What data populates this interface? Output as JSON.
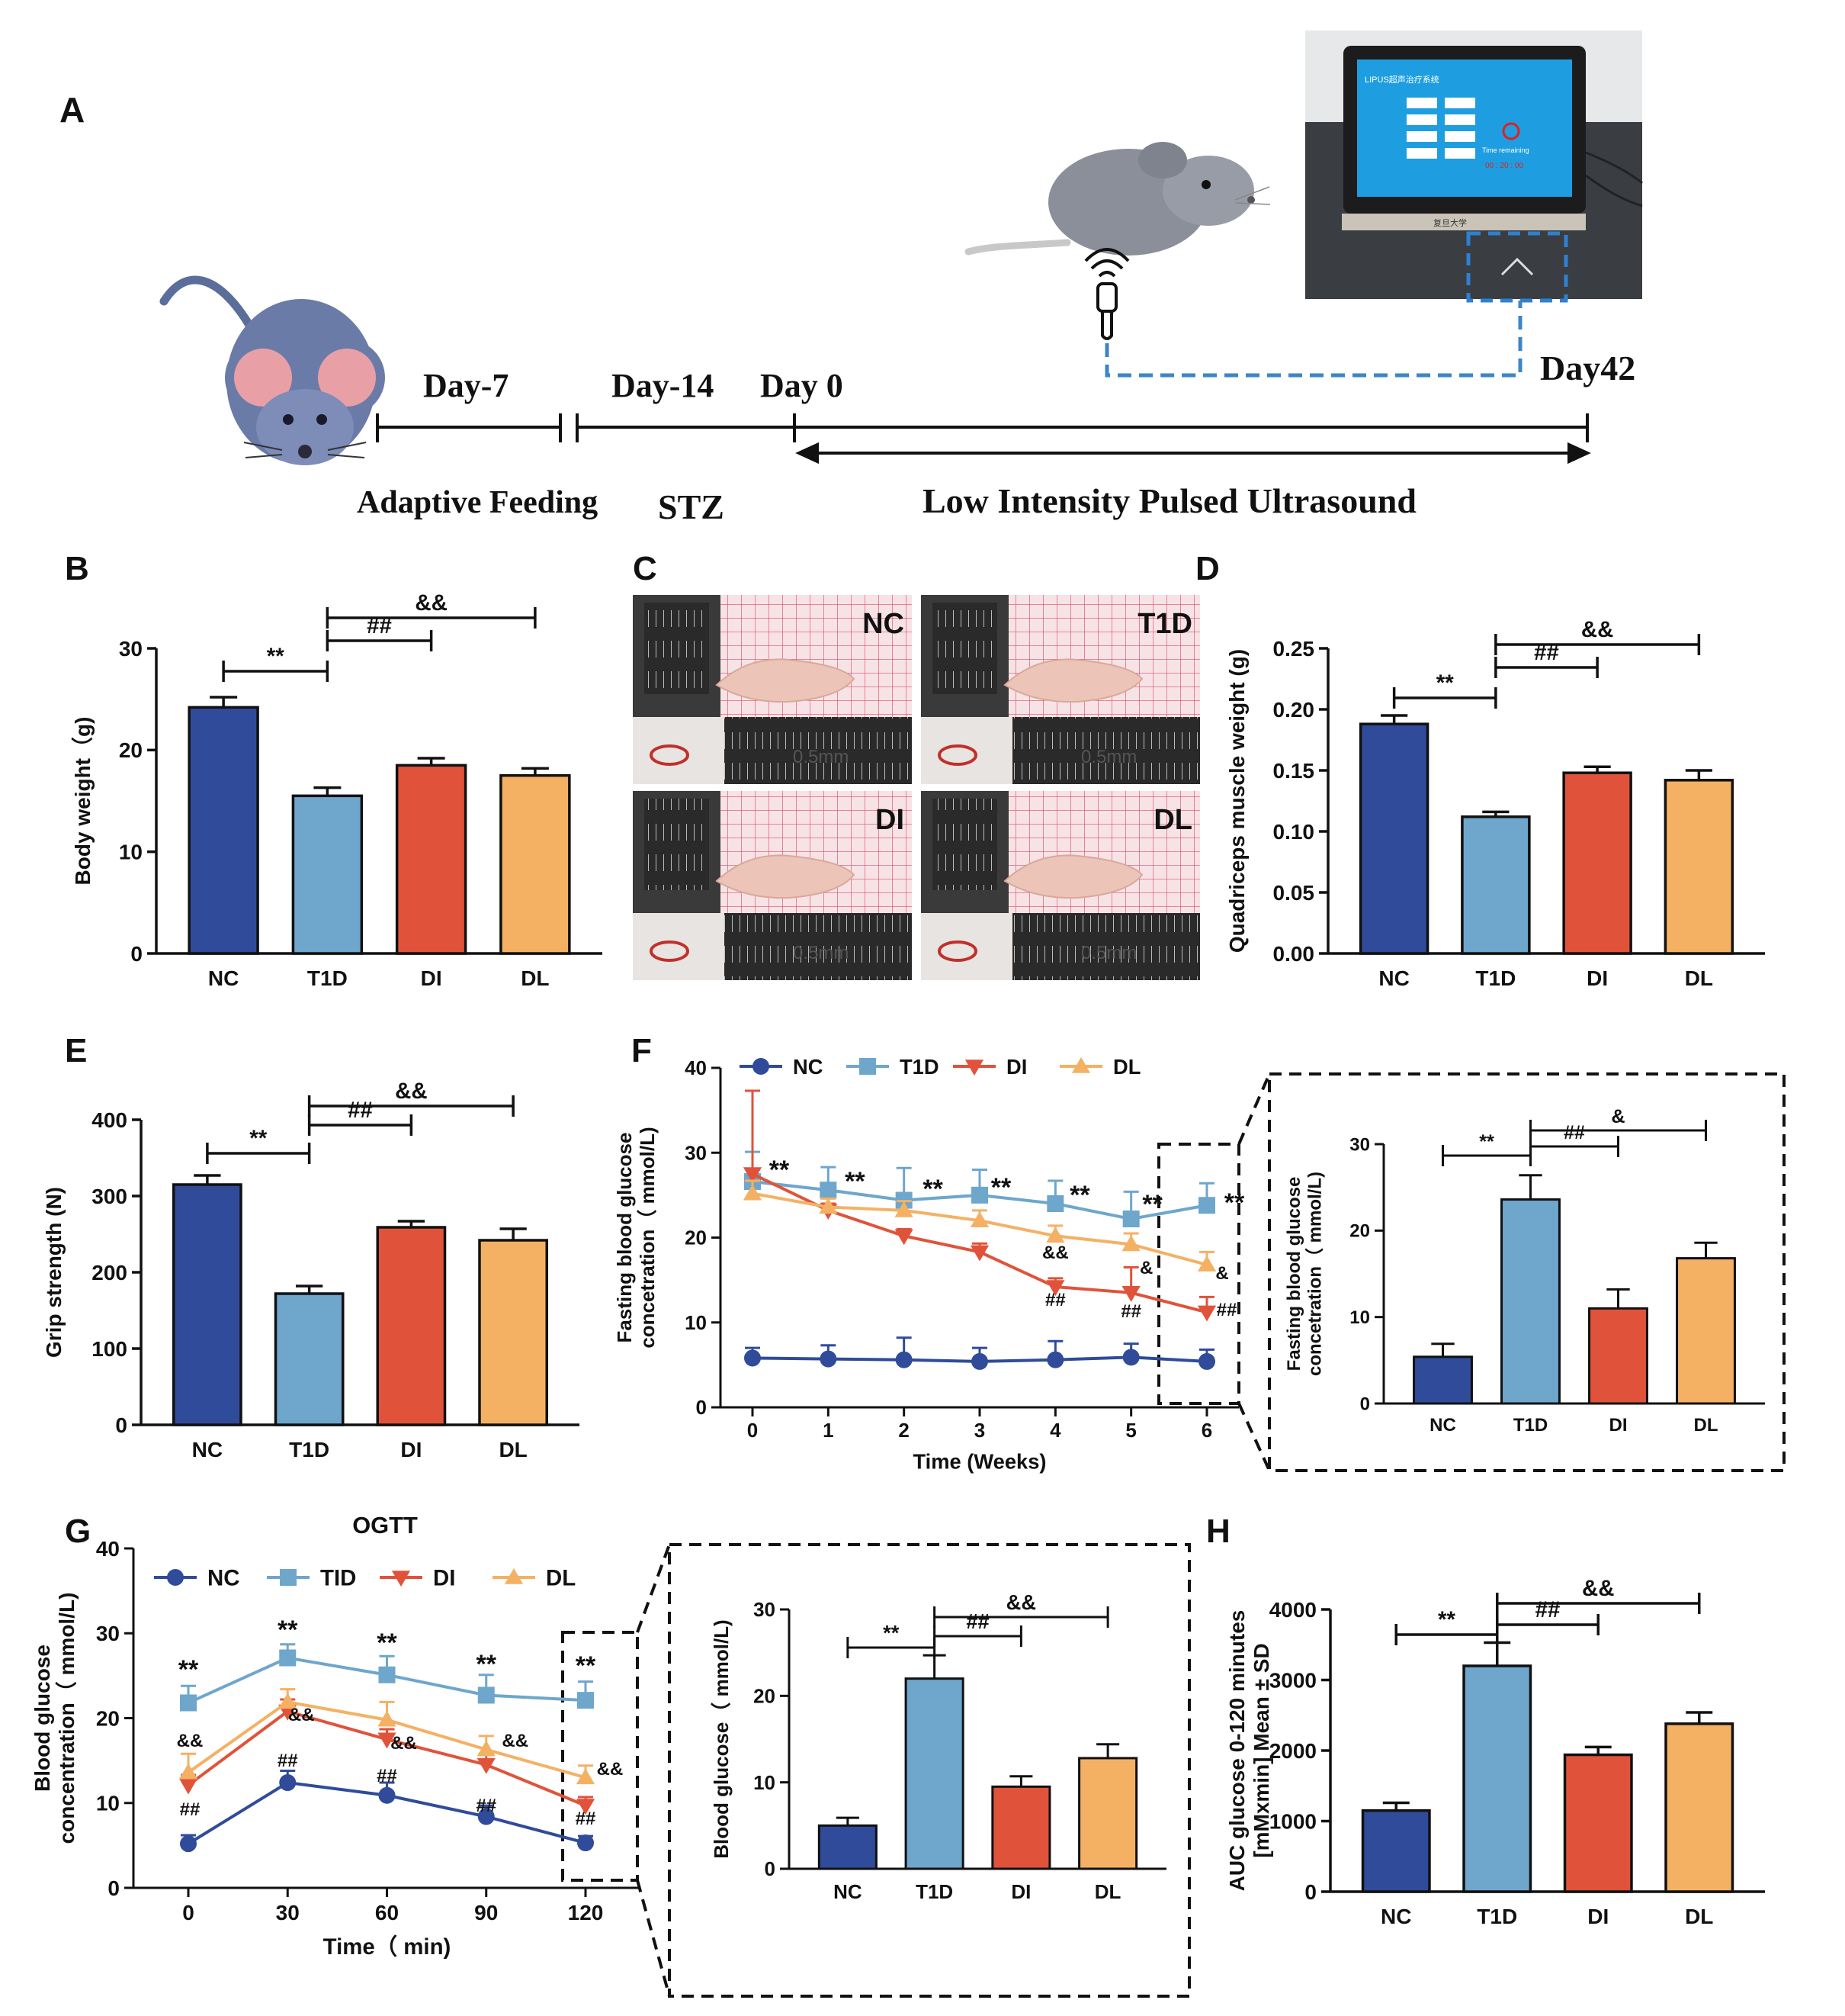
{
  "colors": {
    "NC": "#2f4b9a",
    "T1D": "#6ea6cc",
    "DI": "#e0533a",
    "DL": "#f4b164",
    "photo_bg": "#f6e0e3",
    "timeline_dash": "#3a86c8"
  },
  "panel_labels": {
    "A": "A",
    "B": "B",
    "C": "C",
    "D": "D",
    "E": "E",
    "F": "F",
    "G": "G",
    "H": "H"
  },
  "timeline": {
    "day_minus7": "Day-7",
    "day_minus14": "Day-14",
    "day0": "Day 0",
    "day42": "Day42",
    "phase1": "Adaptive Feeding",
    "phase2": "STZ",
    "phase3": "Low Intensity Pulsed Ultrasound",
    "device_title": "LIPUS超声治疗系统",
    "device_subtitle": "复旦大学",
    "device_time_label": "Time remaining",
    "device_time": "00 : 20 : 00"
  },
  "photo_labels": [
    "NC",
    "T1D",
    "DI",
    "DL"
  ],
  "photo_scale": "0.5mm",
  "chart_data": [
    {
      "id": "B",
      "type": "bar",
      "title": "",
      "categories": [
        "NC",
        "T1D",
        "DI",
        "DL"
      ],
      "values": [
        24.2,
        15.5,
        18.5,
        17.5
      ],
      "errors": [
        1.0,
        0.8,
        0.7,
        0.7
      ],
      "ylabel": "Body weight（g)",
      "ylim": [
        0,
        30
      ],
      "yticks": [
        "0",
        "10",
        "20",
        "30"
      ],
      "annotations": [
        {
          "text": "**",
          "from": "NC",
          "to": "T1D"
        },
        {
          "text": "##",
          "from": "T1D",
          "to": "DI"
        },
        {
          "text": "&&",
          "from": "T1D",
          "to": "DL"
        }
      ]
    },
    {
      "id": "D",
      "type": "bar",
      "title": "",
      "categories": [
        "NC",
        "T1D",
        "DI",
        "DL"
      ],
      "values": [
        0.188,
        0.112,
        0.148,
        0.142
      ],
      "errors": [
        0.007,
        0.004,
        0.005,
        0.008
      ],
      "ylabel": "Quadriceps muscle weight (g)",
      "ylim": [
        0,
        0.25
      ],
      "yticks": [
        "0.00",
        "0.05",
        "0.10",
        "0.15",
        "0.20",
        "0.25"
      ],
      "annotations": [
        {
          "text": "**",
          "from": "NC",
          "to": "T1D"
        },
        {
          "text": "##",
          "from": "T1D",
          "to": "DI"
        },
        {
          "text": "&&",
          "from": "T1D",
          "to": "DL"
        }
      ]
    },
    {
      "id": "E",
      "type": "bar",
      "title": "",
      "categories": [
        "NC",
        "T1D",
        "DI",
        "DL"
      ],
      "values": [
        315,
        172,
        259,
        242
      ],
      "errors": [
        12,
        10,
        8,
        15
      ],
      "ylabel": "Grip strength (N)",
      "ylim": [
        0,
        400
      ],
      "yticks": [
        "0",
        "100",
        "200",
        "300",
        "400"
      ],
      "annotations": [
        {
          "text": "**",
          "from": "NC",
          "to": "T1D"
        },
        {
          "text": "##",
          "from": "T1D",
          "to": "DI"
        },
        {
          "text": "&&",
          "from": "T1D",
          "to": "DL"
        }
      ]
    },
    {
      "id": "F",
      "type": "line",
      "title": "",
      "x": [
        0,
        1,
        2,
        3,
        4,
        5,
        6
      ],
      "xticks": [
        "0",
        "1",
        "2",
        "3",
        "4",
        "5",
        "6"
      ],
      "xlabel": "Time (Weeks)",
      "ylabel": [
        "Fasting blood glucose",
        "concetration（ mmol/L)"
      ],
      "ylim": [
        0,
        40
      ],
      "yticks": [
        "0",
        "10",
        "20",
        "30",
        "40"
      ],
      "series": [
        {
          "name": "NC",
          "values": [
            5.8,
            5.7,
            5.6,
            5.4,
            5.6,
            5.9,
            5.4
          ],
          "errors": [
            1.2,
            1.6,
            2.6,
            1.6,
            2.2,
            1.6,
            1.4
          ]
        },
        {
          "name": "T1D",
          "values": [
            26.6,
            25.6,
            24.4,
            25.0,
            24.0,
            22.2,
            23.8
          ],
          "errors": [
            3.5,
            2.7,
            3.8,
            3.0,
            2.7,
            3.2,
            2.6
          ]
        },
        {
          "name": "DI",
          "values": [
            27.5,
            23.2,
            20.2,
            18.3,
            14.2,
            13.5,
            11.2
          ],
          "errors": [
            9.8,
            0.8,
            0.8,
            1.0,
            1.0,
            3.0,
            1.8
          ]
        },
        {
          "name": "DL",
          "values": [
            25.2,
            23.6,
            23.2,
            22.0,
            20.2,
            19.2,
            16.8
          ],
          "errors": [
            1.5,
            1.0,
            1.1,
            1.2,
            1.2,
            1.3,
            1.5
          ]
        }
      ],
      "point_labels": [
        {
          "text": "**",
          "x": 0
        },
        {
          "text": "**",
          "x": 1
        },
        {
          "text": "**",
          "x": 2
        },
        {
          "text": "**",
          "x": 3
        },
        {
          "text": "**",
          "x": 4
        },
        {
          "text": "**",
          "x": 5
        },
        {
          "text": "**",
          "x": 6
        },
        {
          "text": "&&",
          "x": 4
        },
        {
          "text": "##",
          "x": 4
        },
        {
          "text": "&",
          "x": 5
        },
        {
          "text": "##",
          "x": 5
        },
        {
          "text": "&",
          "x": 6
        },
        {
          "text": "##",
          "x": 6
        }
      ]
    },
    {
      "id": "F_inset",
      "type": "bar",
      "title": "",
      "categories": [
        "NC",
        "T1D",
        "DI",
        "DL"
      ],
      "values": [
        5.4,
        23.6,
        11.0,
        16.8
      ],
      "errors": [
        1.5,
        2.8,
        2.2,
        1.8
      ],
      "ylabel": [
        "Fasting blood glucose",
        "concetration（ mmol/L)"
      ],
      "ylim": [
        0,
        30
      ],
      "yticks": [
        "0",
        "10",
        "20",
        "30"
      ],
      "annotations": [
        {
          "text": "**",
          "from": "NC",
          "to": "T1D"
        },
        {
          "text": "##",
          "from": "T1D",
          "to": "DI"
        },
        {
          "text": "&",
          "from": "T1D",
          "to": "DL"
        }
      ]
    },
    {
      "id": "G",
      "type": "line",
      "title": "OGTT",
      "x": [
        0,
        30,
        60,
        90,
        120
      ],
      "xticks": [
        "0",
        "30",
        "60",
        "90",
        "120"
      ],
      "xlabel": "Time（ min)",
      "ylabel": [
        "Blood glucose",
        "concentration（ mmol/L)"
      ],
      "ylim": [
        0,
        40
      ],
      "yticks": [
        "0",
        "10",
        "20",
        "30",
        "40"
      ],
      "series": [
        {
          "name": "NC",
          "values": [
            5.2,
            12.4,
            10.9,
            8.4,
            5.3
          ],
          "errors": [
            1.0,
            1.4,
            1.5,
            1.3,
            0.8
          ]
        },
        {
          "name": "TID",
          "values": [
            21.8,
            27.1,
            25.1,
            22.7,
            22.1
          ],
          "errors": [
            2.0,
            1.6,
            2.2,
            2.4,
            2.2
          ]
        },
        {
          "name": "DI",
          "values": [
            12.1,
            20.8,
            17.5,
            14.5,
            9.7
          ],
          "errors": [
            1.2,
            1.4,
            1.2,
            1.3,
            1.0
          ]
        },
        {
          "name": "DL",
          "values": [
            13.6,
            21.9,
            19.8,
            16.3,
            13.0
          ],
          "errors": [
            2.2,
            1.5,
            2.1,
            1.6,
            1.4
          ]
        }
      ],
      "point_labels": [
        {
          "text": "**",
          "x": 0
        },
        {
          "text": "**",
          "x": 30
        },
        {
          "text": "**",
          "x": 60
        },
        {
          "text": "**",
          "x": 90
        },
        {
          "text": "**",
          "x": 120
        },
        {
          "text": "&&",
          "x": 0
        },
        {
          "text": "##",
          "x": 0
        },
        {
          "text": "&&",
          "x": 30
        },
        {
          "text": "##",
          "x": 30
        },
        {
          "text": "&&",
          "x": 60
        },
        {
          "text": "##",
          "x": 60
        },
        {
          "text": "&&",
          "x": 90
        },
        {
          "text": "##",
          "x": 90
        },
        {
          "text": "&&",
          "x": 120
        },
        {
          "text": "##",
          "x": 120
        }
      ]
    },
    {
      "id": "G_inset",
      "type": "bar",
      "title": "",
      "categories": [
        "NC",
        "T1D",
        "DI",
        "DL"
      ],
      "values": [
        5.0,
        22.0,
        9.5,
        12.8
      ],
      "errors": [
        0.9,
        2.7,
        1.2,
        1.6
      ],
      "ylabel": "Blood glucose（ mmol/L)",
      "ylim": [
        0,
        30
      ],
      "yticks": [
        "0",
        "10",
        "20",
        "30"
      ],
      "annotations": [
        {
          "text": "**",
          "from": "NC",
          "to": "T1D"
        },
        {
          "text": "##",
          "from": "T1D",
          "to": "DI"
        },
        {
          "text": "&&",
          "from": "T1D",
          "to": "DL"
        }
      ]
    },
    {
      "id": "H",
      "type": "bar",
      "title": "",
      "categories": [
        "NC",
        "T1D",
        "DI",
        "DL"
      ],
      "values": [
        1150,
        3200,
        1940,
        2380
      ],
      "errors": [
        110,
        330,
        110,
        160
      ],
      "ylabel": [
        "AUC glucose 0-120 minutes",
        "[mMxmin] Mean ± SD"
      ],
      "ylim": [
        0,
        4000
      ],
      "yticks": [
        "0",
        "1000",
        "2000",
        "3000",
        "4000"
      ],
      "annotations": [
        {
          "text": "**",
          "from": "NC",
          "to": "T1D"
        },
        {
          "text": "##",
          "from": "T1D",
          "to": "DI"
        },
        {
          "text": "&&",
          "from": "T1D",
          "to": "DL"
        }
      ]
    }
  ]
}
